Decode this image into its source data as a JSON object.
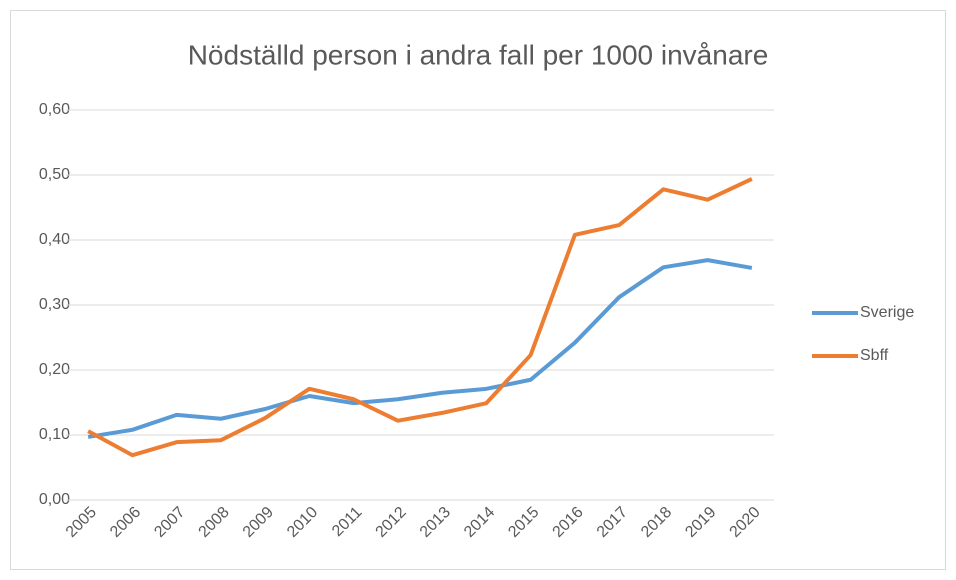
{
  "chart_data": {
    "type": "line",
    "title": "Nödställd person i andra fall per 1000 invånare",
    "categories": [
      "2005",
      "2006",
      "2007",
      "2008",
      "2009",
      "2010",
      "2011",
      "2012",
      "2013",
      "2014",
      "2015",
      "2016",
      "2017",
      "2018",
      "2019",
      "2020"
    ],
    "series": [
      {
        "name": "Sverige",
        "color": "#5b9bd5",
        "values": [
          0.097,
          0.108,
          0.131,
          0.125,
          0.14,
          0.16,
          0.149,
          0.155,
          0.165,
          0.171,
          0.185,
          0.242,
          0.312,
          0.358,
          0.369,
          0.357
        ]
      },
      {
        "name": "Sbff",
        "color": "#ed7d31",
        "values": [
          0.106,
          0.069,
          0.089,
          0.092,
          0.126,
          0.171,
          0.155,
          0.122,
          0.134,
          0.149,
          0.223,
          0.408,
          0.423,
          0.478,
          0.462,
          0.494
        ]
      }
    ],
    "ylim": [
      0,
      0.6
    ],
    "yticks": [
      {
        "value": 0,
        "label": "0,00"
      },
      {
        "value": 0.1,
        "label": "0,10"
      },
      {
        "value": 0.2,
        "label": "0,20"
      },
      {
        "value": 0.3,
        "label": "0,30"
      },
      {
        "value": 0.4,
        "label": "0,40"
      },
      {
        "value": 0.5,
        "label": "0,50"
      },
      {
        "value": 0.6,
        "label": "0,60"
      }
    ],
    "grid": true,
    "legend": "right"
  }
}
